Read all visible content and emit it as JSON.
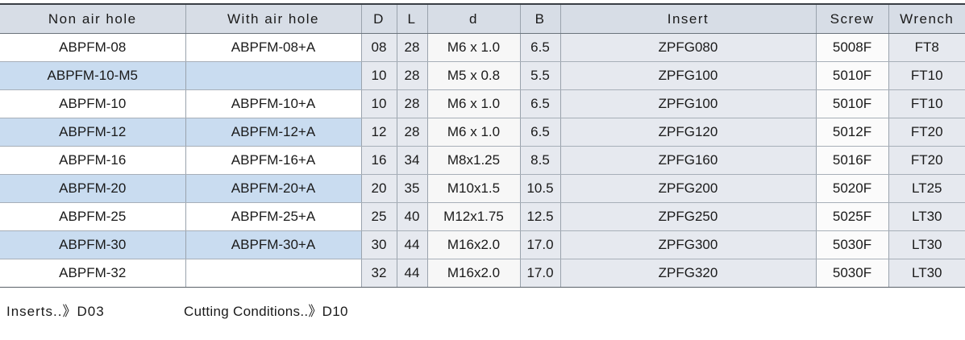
{
  "table": {
    "header": [
      "Non air hole",
      "With air hole",
      "D",
      "L",
      "d",
      "B",
      "Insert",
      "Screw",
      "Wrench"
    ],
    "rows": [
      [
        "ABPFM-08",
        "ABPFM-08+A",
        "08",
        "28",
        "M6 x 1.0",
        "6.5",
        "ZPFG080",
        "5008F",
        "FT8"
      ],
      [
        "ABPFM-10-M5",
        null,
        "10",
        "28",
        "M5 x 0.8",
        "5.5",
        "ZPFG100",
        "5010F",
        "FT10"
      ],
      [
        "ABPFM-10",
        "ABPFM-10+A",
        "10",
        "28",
        "M6 x 1.0",
        "6.5",
        "ZPFG100",
        "5010F",
        "FT10"
      ],
      [
        "ABPFM-12",
        "ABPFM-12+A",
        "12",
        "28",
        "M6 x 1.0",
        "6.5",
        "ZPFG120",
        "5012F",
        "FT20"
      ],
      [
        "ABPFM-16",
        "ABPFM-16+A",
        "16",
        "34",
        "M8x1.25",
        "8.5",
        "ZPFG160",
        "5016F",
        "FT20"
      ],
      [
        "ABPFM-20",
        "ABPFM-20+A",
        "20",
        "35",
        "M10x1.5",
        "10.5",
        "ZPFG200",
        "5020F",
        "LT25"
      ],
      [
        "ABPFM-25",
        "ABPFM-25+A",
        "25",
        "40",
        "M12x1.75",
        "12.5",
        "ZPFG250",
        "5025F",
        "LT30"
      ],
      [
        "ABPFM-30",
        "ABPFM-30+A",
        "30",
        "44",
        "M16x2.0",
        "17.0",
        "ZPFG300",
        "5030F",
        "LT30"
      ],
      [
        "ABPFM-32",
        null,
        "32",
        "44",
        "M16x2.0",
        "17.0",
        "ZPFG320",
        "5030F",
        "LT30"
      ]
    ]
  },
  "footer": {
    "inserts": "Inserts..》D03",
    "cutting": "Cutting Conditions..》D10"
  }
}
